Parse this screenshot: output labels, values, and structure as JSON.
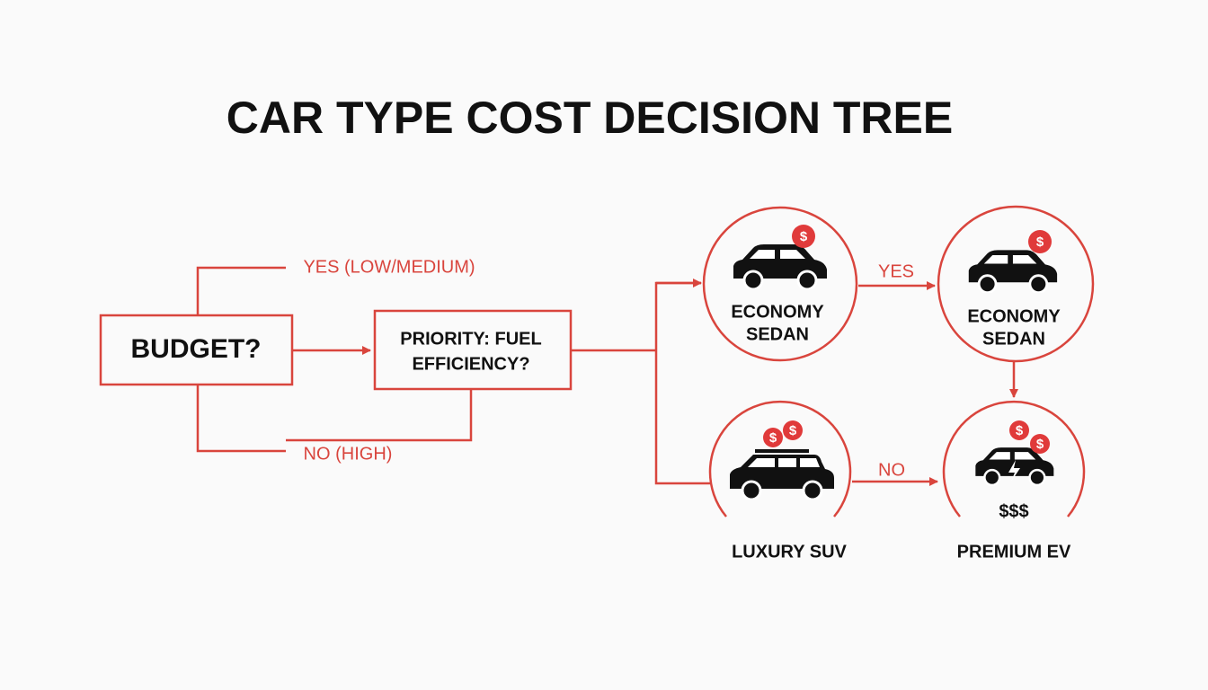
{
  "title": "CAR TYPE COST DECISION TREE",
  "nodes": [
    {
      "lines": [
        "BUDGET?"
      ]
    },
    {
      "lines": [
        "PRIORITY: FUEL",
        "EFFICIENCY?"
      ]
    },
    {
      "lines": [
        "ECONOMY",
        "SEDAN"
      ]
    },
    {
      "lines": [
        "ECONOMY",
        "SEDAN"
      ]
    },
    {
      "lines": [
        "LUXURY SUV"
      ]
    },
    {
      "lines": [
        "PREMIUM EV"
      ],
      "price": "$$$"
    }
  ],
  "edges": [
    {
      "label": "YES (LOW/MEDIUM)"
    },
    {
      "label": "NO (HIGH)"
    },
    {
      "label": "YES"
    },
    {
      "label": "NO"
    }
  ],
  "badge_symbol": "$"
}
